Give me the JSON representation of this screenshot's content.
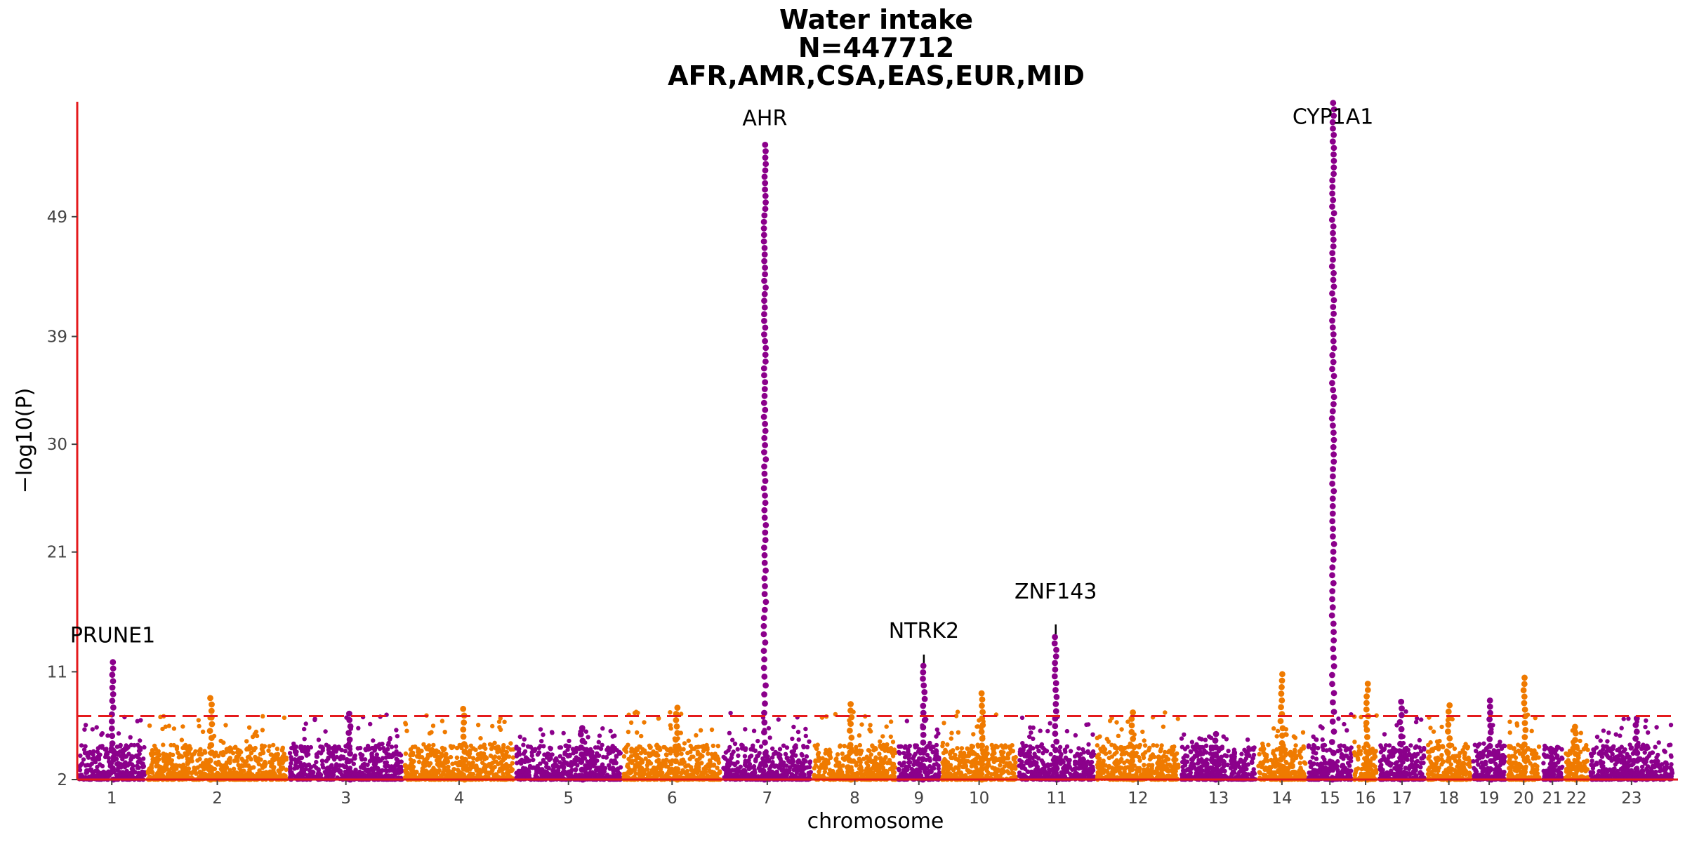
{
  "chart_data": {
    "type": "scatter",
    "title": [
      "Water intake",
      "N=447712",
      "AFR,AMR,CSA,EAS,EUR,MID"
    ],
    "xlabel": "chromosome",
    "ylabel": "−log10(P)",
    "yticks": [
      2,
      11,
      21,
      30,
      39,
      49
    ],
    "ylim": [
      2,
      58.6
    ],
    "significance_line": 7.3,
    "grid": false,
    "colors": {
      "odd": "#8b008b",
      "even": "#ef7a00",
      "axis": "#e41a1c",
      "threshold": "#e41a1c"
    },
    "chromosomes": [
      {
        "label": "1",
        "peak": 11.8
      },
      {
        "label": "2",
        "peak": 8.8
      },
      {
        "label": "3",
        "peak": 7.5
      },
      {
        "label": "4",
        "peak": 7.9
      },
      {
        "label": "5",
        "peak": 6.3
      },
      {
        "label": "6",
        "peak": 8.0
      },
      {
        "label": "7",
        "peak": 55.0
      },
      {
        "label": "8",
        "peak": 8.3
      },
      {
        "label": "9",
        "peak": 11.5
      },
      {
        "label": "10",
        "peak": 9.2
      },
      {
        "label": "11",
        "peak": 13.9
      },
      {
        "label": "12",
        "peak": 7.6
      },
      {
        "label": "13",
        "peak": 5.8
      },
      {
        "label": "14",
        "peak": 10.8
      },
      {
        "label": "15",
        "peak": 58.5
      },
      {
        "label": "16",
        "peak": 10.0
      },
      {
        "label": "17",
        "peak": 8.5
      },
      {
        "label": "18",
        "peak": 8.2
      },
      {
        "label": "19",
        "peak": 8.6
      },
      {
        "label": "20",
        "peak": 10.5
      },
      {
        "label": "21",
        "peak": 4.3
      },
      {
        "label": "22",
        "peak": 6.4
      },
      {
        "label": "23",
        "peak": 7.1
      }
    ],
    "annotations": [
      {
        "label": "PRUNE1",
        "chromosome": "1",
        "value": 11.8
      },
      {
        "label": "AHR",
        "chromosome": "7",
        "value": 55.0
      },
      {
        "label": "NTRK2",
        "chromosome": "9",
        "value": 11.5
      },
      {
        "label": "ZNF143",
        "chromosome": "11",
        "value": 13.9
      },
      {
        "label": "CYP1A1",
        "chromosome": "15",
        "value": 58.5
      }
    ]
  }
}
